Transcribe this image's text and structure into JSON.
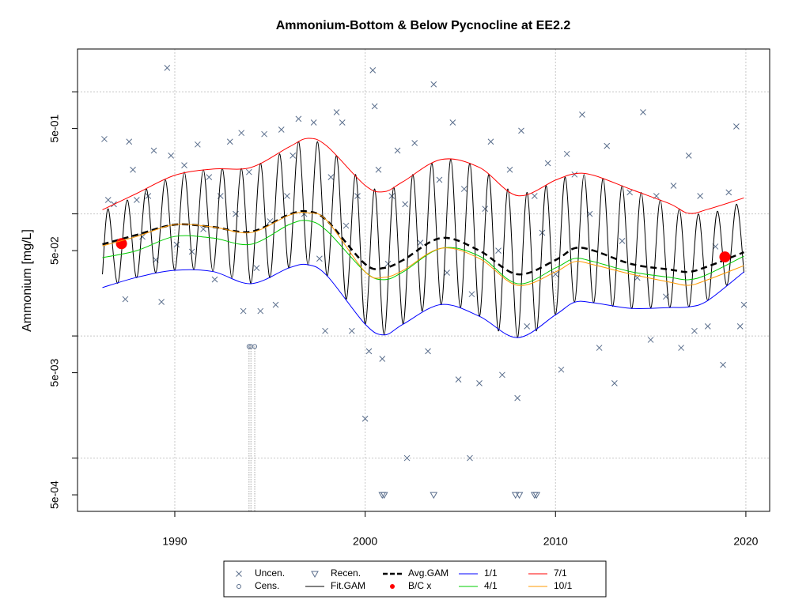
{
  "chart_data": {
    "type": "line",
    "title": "Ammonium-Bottom & Below Pycnocline at EE2.2",
    "y_label": "Ammonium [mg/L]",
    "log_y": true,
    "grid": true,
    "legend": "bottom",
    "xlim": [
      1984.89,
      2021.25
    ],
    "xticks": [
      1990,
      2000,
      2010,
      2020
    ],
    "ylim": [
      0.000366,
      2.24
    ],
    "yticks": [
      {
        "value": 0.5,
        "label": "5e-01"
      },
      {
        "value": 0.05,
        "label": "5e-02"
      },
      {
        "value": 0.005,
        "label": "5e-03"
      },
      {
        "value": 0.0005,
        "label": "5e-04"
      }
    ],
    "ygrid": [
      1,
      0.1,
      0.01,
      0.001
    ],
    "series": [
      {
        "name": "Uncen.",
        "mark": "cross",
        "color": "#5a6e8c",
        "x": [
          1986.3,
          1986.5,
          1986.8,
          1987.1,
          1987.4,
          1987.6,
          1987.8,
          1988.0,
          1988.3,
          1988.6,
          1988.9,
          1989.0,
          1989.3,
          1989.6,
          1989.8,
          1990.1,
          1990.5,
          1990.9,
          1991.2,
          1991.5,
          1991.8,
          1992.1,
          1992.4,
          1992.9,
          1993.2,
          1993.5,
          1993.6,
          1993.9,
          1994.3,
          1994.5,
          1994.7,
          1995.0,
          1995.3,
          1995.6,
          1995.9,
          1996.2,
          1996.5,
          1996.8,
          1997.3,
          1997.6,
          1997.9,
          1998.2,
          1998.5,
          1998.8,
          1999.0,
          1999.3,
          1999.6,
          2000.0,
          2000.2,
          2000.4,
          2000.5,
          2000.7,
          2000.9,
          2001.2,
          2001.4,
          2001.7,
          2002.1,
          2002.2,
          2002.6,
          2002.9,
          2003.3,
          2003.6,
          2003.9,
          2004.3,
          2004.6,
          2004.9,
          2005.2,
          2005.5,
          2005.6,
          2006.0,
          2006.3,
          2006.6,
          2007.0,
          2007.2,
          2007.6,
          2008.0,
          2008.2,
          2008.5,
          2008.9,
          2009.3,
          2009.6,
          2010.0,
          2010.3,
          2010.6,
          2011.0,
          2011.4,
          2011.8,
          2012.3,
          2012.7,
          2013.1,
          2013.5,
          2013.9,
          2014.3,
          2014.6,
          2015.0,
          2015.3,
          2015.8,
          2016.2,
          2016.6,
          2017.0,
          2017.3,
          2017.6,
          2018.0,
          2018.4,
          2018.8,
          2019.1,
          2019.5,
          2019.7,
          2019.9
        ],
        "values": [
          0.41,
          0.13,
          0.12,
          0.058,
          0.02,
          0.39,
          0.23,
          0.13,
          0.065,
          0.14,
          0.33,
          0.042,
          0.019,
          1.57,
          0.3,
          0.056,
          0.25,
          0.049,
          0.37,
          0.075,
          0.2,
          0.029,
          0.14,
          0.39,
          0.1,
          0.46,
          0.016,
          0.22,
          0.036,
          0.016,
          0.45,
          0.087,
          0.018,
          0.49,
          0.14,
          0.3,
          0.6,
          0.1,
          0.56,
          0.043,
          0.011,
          0.2,
          0.68,
          0.56,
          0.08,
          0.011,
          0.14,
          0.0021,
          0.0075,
          1.5,
          0.76,
          0.23,
          0.0065,
          0.039,
          0.14,
          0.33,
          0.12,
          0.001,
          0.38,
          0.058,
          0.0075,
          1.15,
          0.19,
          0.033,
          0.56,
          0.0044,
          0.16,
          0.001,
          0.022,
          0.0041,
          0.11,
          0.39,
          0.05,
          0.0048,
          0.23,
          0.0031,
          0.48,
          0.012,
          0.14,
          0.07,
          0.26,
          0.032,
          0.0053,
          0.31,
          0.21,
          0.65,
          0.1,
          0.008,
          0.36,
          0.0041,
          0.06,
          0.15,
          0.03,
          0.68,
          0.0093,
          0.14,
          0.021,
          0.17,
          0.008,
          0.3,
          0.011,
          0.14,
          0.012,
          0.054,
          0.0058,
          0.15,
          0.52,
          0.012,
          0.018
        ]
      },
      {
        "name": "Cens.",
        "mark": "circle",
        "color": "#5a6e8c",
        "drop_lines": true,
        "x": [
          1993.9,
          1994.0,
          1994.2
        ],
        "values": [
          0.0082,
          0.0082,
          0.0082
        ]
      },
      {
        "name": "Recen.",
        "mark": "triangle",
        "color": "#5a6e8c",
        "x": [
          2000.9,
          2001.0,
          2003.6,
          2007.9,
          2008.1,
          2008.9,
          2009.0
        ],
        "values": [
          0.0005,
          0.0005,
          0.0005,
          0.0005,
          0.0005,
          0.0005,
          0.0005
        ]
      },
      {
        "name": "Fit.GAM",
        "mark": "line",
        "color": "#000000",
        "x": [
          1986.2,
          1986.5,
          1987,
          1987.5,
          1988,
          1988.5,
          1989,
          1989.5,
          1990,
          1990.5,
          1991,
          1991.5,
          1992,
          1992.5,
          1993,
          1993.5,
          1994,
          1994.5,
          1995,
          1995.5,
          1996,
          1996.5,
          1997,
          1997.5,
          1998,
          1998.5,
          1999,
          1999.5,
          2000,
          2000.5,
          2001,
          2001.5,
          2002,
          2002.5,
          2003,
          2003.5,
          2004,
          2004.5,
          2005,
          2005.5,
          2006,
          2006.5,
          2007,
          2007.5,
          2008,
          2008.5,
          2009,
          2009.5,
          2010,
          2010.5,
          2011,
          2011.5,
          2012,
          2012.5,
          2013,
          2013.5,
          2014,
          2014.5,
          2015,
          2015.5,
          2016,
          2016.5,
          2017,
          2017.5,
          2018,
          2018.5,
          2019,
          2019.5,
          2019.9
        ],
        "values": [
          0.032,
          0.11,
          0.027,
          0.13,
          0.03,
          0.16,
          0.033,
          0.19,
          0.0345,
          0.22,
          0.035,
          0.23,
          0.034,
          0.235,
          0.03,
          0.235,
          0.027,
          0.26,
          0.03,
          0.31,
          0.036,
          0.39,
          0.038,
          0.39,
          0.031,
          0.3,
          0.02,
          0.21,
          0.0125,
          0.16,
          0.0102,
          0.165,
          0.0125,
          0.21,
          0.016,
          0.26,
          0.018,
          0.28,
          0.017,
          0.26,
          0.0145,
          0.21,
          0.011,
          0.16,
          0.0097,
          0.15,
          0.011,
          0.17,
          0.015,
          0.2,
          0.019,
          0.21,
          0.0187,
          0.195,
          0.0175,
          0.17,
          0.0168,
          0.15,
          0.017,
          0.13,
          0.0171,
          0.11,
          0.0173,
          0.1,
          0.0195,
          0.105,
          0.026,
          0.12,
          0.033
        ]
      },
      {
        "name": "Avg.GAM",
        "mark": "dashed",
        "color": "#000000",
        "x": [
          1986.2,
          1988,
          1990,
          1992,
          1994,
          1996,
          1997,
          1998,
          2000,
          2001,
          2002,
          2004,
          2006,
          2008,
          2010,
          2011,
          2012,
          2014,
          2016,
          2017,
          2018,
          2019.9
        ],
        "values": [
          0.0563,
          0.0673,
          0.0816,
          0.0781,
          0.0714,
          0.0986,
          0.1045,
          0.0879,
          0.0388,
          0.0361,
          0.0419,
          0.0634,
          0.05,
          0.032,
          0.0419,
          0.0523,
          0.05,
          0.0388,
          0.035,
          0.0335,
          0.0371,
          0.0485
        ]
      },
      {
        "name": "B/C x",
        "mark": "dot",
        "color": "#ff0000",
        "x": [
          1987.2,
          2018.9
        ],
        "values": [
          0.057,
          0.0444
        ]
      },
      {
        "name": "1/1",
        "mark": "line",
        "color": "#0000ff",
        "x": [
          1986.2,
          1988,
          1990,
          1992,
          1994,
          1996,
          1997,
          1998,
          2000,
          2001,
          2002,
          2004,
          2006,
          2008,
          2010,
          2011,
          2012,
          2014,
          2016,
          2017,
          2018,
          2019.9
        ],
        "values": [
          0.0249,
          0.0302,
          0.0345,
          0.0337,
          0.0268,
          0.0361,
          0.0383,
          0.0311,
          0.0125,
          0.0102,
          0.0125,
          0.0181,
          0.0145,
          0.0097,
          0.0149,
          0.0189,
          0.0187,
          0.0168,
          0.0171,
          0.0173,
          0.0195,
          0.0335
        ]
      },
      {
        "name": "4/1",
        "mark": "line",
        "color": "#00cc00",
        "x": [
          1986.2,
          1988,
          1990,
          1992,
          1994,
          1996,
          1997,
          1998,
          2000,
          2001,
          2002,
          2004,
          2006,
          2008,
          2010,
          2011,
          2012,
          2014,
          2016,
          2017,
          2018,
          2019.9
        ],
        "values": [
          0.0438,
          0.05,
          0.0653,
          0.0634,
          0.0563,
          0.0816,
          0.0879,
          0.0724,
          0.0335,
          0.0289,
          0.0335,
          0.0523,
          0.0451,
          0.0268,
          0.0361,
          0.0431,
          0.0406,
          0.0335,
          0.0302,
          0.0289,
          0.032,
          0.0451
        ]
      },
      {
        "name": "7/1",
        "mark": "line",
        "color": "#ff0000",
        "x": [
          1986.2,
          1988,
          1990,
          1992,
          1994,
          1996,
          1997,
          1998,
          2000,
          2001,
          2002,
          2004,
          2006,
          2008,
          2010,
          2011,
          2012,
          2014,
          2016,
          2017,
          2018,
          2019.9
        ],
        "values": [
          0.108,
          0.147,
          0.207,
          0.233,
          0.24,
          0.353,
          0.416,
          0.358,
          0.171,
          0.152,
          0.184,
          0.279,
          0.24,
          0.141,
          0.189,
          0.213,
          0.207,
          0.158,
          0.121,
          0.101,
          0.109,
          0.135
        ]
      },
      {
        "name": "10/1",
        "mark": "line",
        "color": "#ff9900",
        "x": [
          1986.2,
          1988,
          1990,
          1992,
          1994,
          1996,
          1997,
          1998,
          2000,
          2001,
          2002,
          2004,
          2006,
          2008,
          2010,
          2011,
          2012,
          2014,
          2016,
          2017,
          2018,
          2019.9
        ],
        "values": [
          0.0547,
          0.0653,
          0.0816,
          0.0781,
          0.0703,
          0.0975,
          0.102,
          0.0879,
          0.0335,
          0.0302,
          0.0345,
          0.0523,
          0.0431,
          0.026,
          0.0335,
          0.0406,
          0.0383,
          0.032,
          0.0276,
          0.026,
          0.0289,
          0.0377
        ]
      }
    ]
  }
}
